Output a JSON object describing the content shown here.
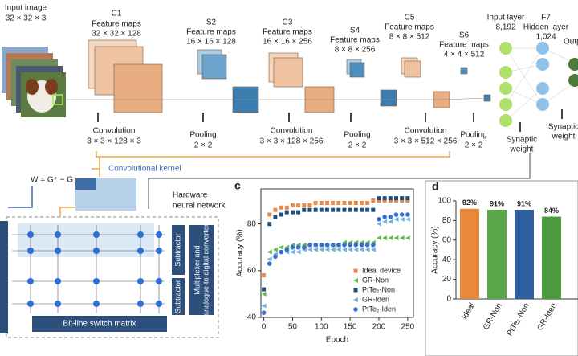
{
  "diagram": {
    "input": {
      "label": "Input image",
      "dims": "32 × 32 × 3"
    },
    "layers": [
      {
        "id": "C1",
        "label": "Feature maps",
        "dims": "32 × 32 × 128"
      },
      {
        "id": "S2",
        "label": "Feature maps",
        "dims": "16 × 16 × 128"
      },
      {
        "id": "C3",
        "label": "Feature maps",
        "dims": "16 × 16 × 256"
      },
      {
        "id": "S4",
        "label": "Feature maps",
        "dims": "8 × 8 × 256"
      },
      {
        "id": "C5",
        "label": "Feature maps",
        "dims": "8 × 8 × 512"
      },
      {
        "id": "S6",
        "label": "Feature maps",
        "dims": "4 × 4 × 512"
      }
    ],
    "input_layer": {
      "label": "Input layer",
      "size": "8,192"
    },
    "hidden_layer": {
      "id": "F7",
      "label": "Hidden layer",
      "size": "1,024"
    },
    "output_layer": {
      "label": "Output"
    },
    "operations": [
      {
        "name": "Convolution",
        "dims": "3 × 3 × 128 × 3"
      },
      {
        "name": "Pooling",
        "dims": "2 × 2"
      },
      {
        "name": "Convolution",
        "dims": "3 × 3 × 128 × 256"
      },
      {
        "name": "Pooling",
        "dims": "2 × 2"
      },
      {
        "name": "Convolution",
        "dims": "3 × 3 × 512 × 256"
      },
      {
        "name": "Pooling",
        "dims": "2 × 2"
      }
    ],
    "synaptic_weight_1": [
      "Synaptic",
      "weight"
    ],
    "synaptic_weight_2": [
      "Synaptic",
      "weight"
    ],
    "kernel_label": "Convolutional kernel"
  },
  "hardware": {
    "formula": "W = G⁺ − G⁻",
    "title": [
      "Hardware",
      "neural network"
    ],
    "switch_matrix": "Bit-line switch matrix",
    "subtractor_1": "Subtractor",
    "subtractor_2": "Subtractor",
    "converter": [
      "Multiplexer and",
      "analogue-to-digital converter"
    ]
  },
  "chart_data": [
    {
      "type": "scatter",
      "panel": "c",
      "x_label": "Epoch",
      "y_label": "Accuracy (%)",
      "x": [
        0,
        10,
        20,
        30,
        40,
        50,
        60,
        70,
        80,
        90,
        100,
        110,
        120,
        130,
        140,
        150,
        160,
        170,
        180,
        190,
        200,
        210,
        220,
        230,
        240,
        250
      ],
      "xlim": [
        -5,
        260
      ],
      "xticks": [
        0,
        50,
        100,
        150,
        200,
        250
      ],
      "ylim": [
        40,
        95
      ],
      "yticks": [
        40,
        60,
        80
      ],
      "series": [
        {
          "name": "Ideal device",
          "color": "#e8894a",
          "marker": "square",
          "values": [
            58,
            84,
            86,
            87,
            87,
            88,
            88,
            88,
            88,
            89,
            89,
            89,
            89,
            89,
            89,
            89,
            89,
            89,
            89,
            90,
            90,
            90,
            90,
            90,
            90,
            90
          ]
        },
        {
          "name": "GR-Non",
          "color": "#66b84e",
          "marker": "triangle",
          "values": [
            50,
            68,
            69,
            70,
            70,
            71,
            71,
            71,
            71,
            71,
            71,
            71,
            71,
            71,
            72,
            72,
            72,
            72,
            72,
            72,
            74,
            74,
            74,
            74,
            74,
            74
          ]
        },
        {
          "name": "PtTe₂-Non",
          "color": "#1f4e79",
          "marker": "square",
          "values": [
            52,
            80,
            83,
            84,
            85,
            85,
            85,
            86,
            86,
            86,
            86,
            86,
            86,
            86,
            86,
            86,
            86,
            86,
            86,
            86,
            91,
            91,
            91,
            91,
            91,
            91
          ]
        },
        {
          "name": "GR-Iden",
          "color": "#6fb3e0",
          "marker": "triangle",
          "values": [
            45,
            65,
            67,
            68,
            68,
            68,
            68,
            69,
            69,
            69,
            69,
            69,
            69,
            69,
            69,
            69,
            69,
            69,
            69,
            69,
            80,
            81,
            81,
            82,
            82,
            82
          ]
        },
        {
          "name": "PtTe₂-Iden",
          "color": "#3b6fd6",
          "marker": "circle",
          "values": [
            42,
            63,
            66,
            68,
            69,
            70,
            70,
            70,
            71,
            71,
            71,
            71,
            71,
            71,
            71,
            71,
            71,
            71,
            71,
            71,
            82,
            83,
            83,
            84,
            84,
            84
          ]
        }
      ]
    },
    {
      "type": "bar",
      "panel": "d",
      "y_label": "Accuracy (%)",
      "categories": [
        "Ideal",
        "GR-Non",
        "PtTe₂-Non",
        "GR-Iden"
      ],
      "values": [
        92,
        91,
        91,
        84
      ],
      "value_labels": [
        "92%",
        "91%",
        "91%",
        "84%"
      ],
      "colors": [
        "#e8883a",
        "#5aa64a",
        "#2e5fa0",
        "#4b9a3e"
      ],
      "ylim": [
        0,
        100
      ],
      "yticks": [
        0,
        20,
        40,
        60,
        80,
        100
      ]
    }
  ]
}
